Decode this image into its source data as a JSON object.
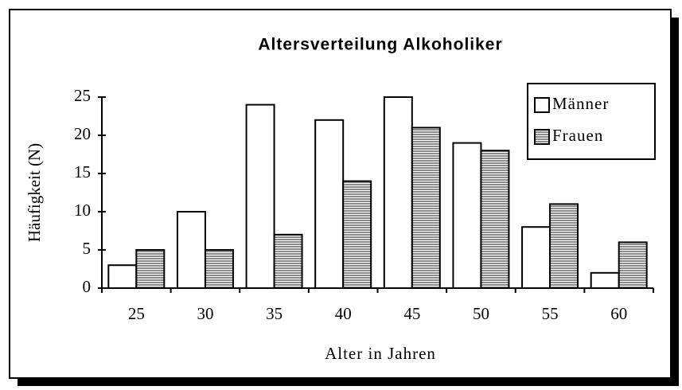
{
  "chart_data": {
    "type": "bar",
    "title": "Altersverteilung Alkoholiker",
    "x_label": "Alter in Jahren",
    "y_label": "Häufigkeit (N)",
    "categories": [
      "25",
      "30",
      "35",
      "40",
      "45",
      "50",
      "55",
      "60"
    ],
    "series": [
      {
        "name": "Männer",
        "color": "#ffffff",
        "values": [
          3,
          10,
          24,
          22,
          25,
          19,
          8,
          2
        ]
      },
      {
        "name": "Frauen",
        "color": "#8c8c8c",
        "values": [
          5,
          5,
          7,
          14,
          21,
          18,
          11,
          6
        ]
      }
    ],
    "ylim": [
      0,
      25
    ],
    "yticks": [
      0,
      5,
      10,
      15,
      20,
      25
    ],
    "legend": "upper right",
    "grid": false
  }
}
